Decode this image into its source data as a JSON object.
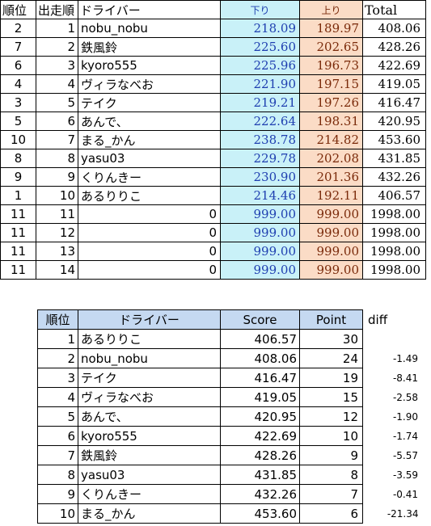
{
  "race_table": {
    "headers": {
      "rank": "順位",
      "order": "出走順",
      "driver": "ドライバー",
      "down": "下り",
      "up": "上り",
      "total": "Total"
    },
    "rows": [
      {
        "rank": "2",
        "order": "1",
        "driver": "nobu_nobu",
        "down": "218.09",
        "up": "189.97",
        "total": "408.06"
      },
      {
        "rank": "7",
        "order": "2",
        "driver": "鉄風鈴",
        "down": "225.60",
        "up": "202.65",
        "total": "428.26"
      },
      {
        "rank": "6",
        "order": "3",
        "driver": "kyoro555",
        "down": "225.96",
        "up": "196.73",
        "total": "422.69"
      },
      {
        "rank": "4",
        "order": "4",
        "driver": "ヴィラなべお",
        "down": "221.90",
        "up": "197.15",
        "total": "419.05"
      },
      {
        "rank": "3",
        "order": "5",
        "driver": "テイク",
        "down": "219.21",
        "up": "197.26",
        "total": "416.47"
      },
      {
        "rank": "5",
        "order": "6",
        "driver": "あんで、",
        "down": "222.64",
        "up": "198.31",
        "total": "420.95"
      },
      {
        "rank": "10",
        "order": "7",
        "driver": "まる_かん",
        "down": "238.78",
        "up": "214.82",
        "total": "453.60"
      },
      {
        "rank": "8",
        "order": "8",
        "driver": "yasu03",
        "down": "229.78",
        "up": "202.08",
        "total": "431.85"
      },
      {
        "rank": "9",
        "order": "9",
        "driver": "くりんきー",
        "down": "230.90",
        "up": "201.36",
        "total": "432.26"
      },
      {
        "rank": "1",
        "order": "10",
        "driver": "あるりりこ",
        "down": "214.46",
        "up": "192.11",
        "total": "406.57"
      },
      {
        "rank": "11",
        "order": "11",
        "driver": "0",
        "down": "999.00",
        "up": "999.00",
        "total": "1998.00"
      },
      {
        "rank": "11",
        "order": "12",
        "driver": "0",
        "down": "999.00",
        "up": "999.00",
        "total": "1998.00"
      },
      {
        "rank": "11",
        "order": "13",
        "driver": "0",
        "down": "999.00",
        "up": "999.00",
        "total": "1998.00"
      },
      {
        "rank": "11",
        "order": "14",
        "driver": "0",
        "down": "999.00",
        "up": "999.00",
        "total": "1998.00"
      }
    ]
  },
  "ranking_table": {
    "headers": {
      "rank": "順位",
      "driver": "ドライバー",
      "score": "Score",
      "point": "Point",
      "diff": "diff"
    },
    "rows": [
      {
        "rank": "1",
        "driver": "あるりりこ",
        "score": "406.57",
        "point": "30",
        "diff": ""
      },
      {
        "rank": "2",
        "driver": "nobu_nobu",
        "score": "408.06",
        "point": "24",
        "diff": "-1.49"
      },
      {
        "rank": "3",
        "driver": "テイク",
        "score": "416.47",
        "point": "19",
        "diff": "-8.41"
      },
      {
        "rank": "4",
        "driver": "ヴィラなべお",
        "score": "419.05",
        "point": "15",
        "diff": "-2.58"
      },
      {
        "rank": "5",
        "driver": "あんで、",
        "score": "420.95",
        "point": "12",
        "diff": "-1.90"
      },
      {
        "rank": "6",
        "driver": "kyoro555",
        "score": "422.69",
        "point": "10",
        "diff": "-1.74"
      },
      {
        "rank": "7",
        "driver": "鉄風鈴",
        "score": "428.26",
        "point": "9",
        "diff": "-5.57"
      },
      {
        "rank": "8",
        "driver": "yasu03",
        "score": "431.85",
        "point": "8",
        "diff": "-3.59"
      },
      {
        "rank": "9",
        "driver": "くりんきー",
        "score": "432.26",
        "point": "7",
        "diff": "-0.41"
      },
      {
        "rank": "10",
        "driver": "まる_かん",
        "score": "453.60",
        "point": "6",
        "diff": "-21.34"
      }
    ]
  },
  "colors": {
    "down_fill": "#c9f1f8",
    "up_fill": "#fbdcc6",
    "header_fill": "#c5d9f1"
  }
}
